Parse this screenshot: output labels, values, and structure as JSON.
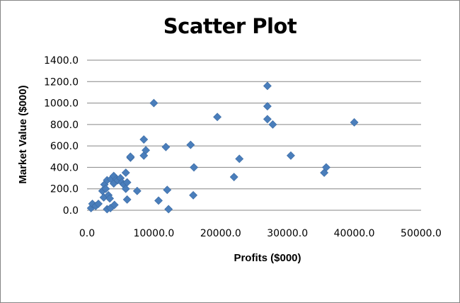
{
  "chart_data": {
    "type": "scatter",
    "title": "Scatter Plot",
    "xlabel": "Profits ($000)",
    "ylabel": "Market Value ($000)",
    "xlim": [
      0,
      50000
    ],
    "ylim": [
      0,
      1400
    ],
    "x_ticks": [
      "0.0",
      "10000.0",
      "20000.0",
      "30000.0",
      "40000.0",
      "50000.0"
    ],
    "y_ticks": [
      "0.0",
      "200.0",
      "400.0",
      "600.0",
      "800.0",
      "1000.0",
      "1200.0",
      "1400.0"
    ],
    "grid": "horizontal",
    "legend": "none",
    "marker_color": "#4a7ebb",
    "points": [
      [
        600,
        20
      ],
      [
        800,
        60
      ],
      [
        1300,
        40
      ],
      [
        1700,
        60
      ],
      [
        2300,
        180
      ],
      [
        2500,
        120
      ],
      [
        2600,
        240
      ],
      [
        2800,
        200
      ],
      [
        3000,
        280
      ],
      [
        3000,
        10
      ],
      [
        3200,
        140
      ],
      [
        3400,
        110
      ],
      [
        3500,
        20
      ],
      [
        3600,
        290
      ],
      [
        4000,
        320
      ],
      [
        4000,
        250
      ],
      [
        4100,
        50
      ],
      [
        4400,
        290
      ],
      [
        4600,
        280
      ],
      [
        5000,
        300
      ],
      [
        5200,
        260
      ],
      [
        5500,
        240
      ],
      [
        5800,
        350
      ],
      [
        5800,
        200
      ],
      [
        6000,
        260
      ],
      [
        6000,
        100
      ],
      [
        6500,
        490
      ],
      [
        6500,
        500
      ],
      [
        7500,
        180
      ],
      [
        8500,
        660
      ],
      [
        8500,
        510
      ],
      [
        8800,
        560
      ],
      [
        10000,
        1000
      ],
      [
        10700,
        90
      ],
      [
        11800,
        590
      ],
      [
        12000,
        190
      ],
      [
        12200,
        10
      ],
      [
        15500,
        610
      ],
      [
        15900,
        140
      ],
      [
        16000,
        400
      ],
      [
        19500,
        870
      ],
      [
        22000,
        310
      ],
      [
        22800,
        480
      ],
      [
        27000,
        1160
      ],
      [
        27000,
        970
      ],
      [
        27000,
        850
      ],
      [
        27800,
        800
      ],
      [
        30500,
        510
      ],
      [
        35500,
        350
      ],
      [
        35800,
        400
      ],
      [
        40000,
        820
      ]
    ]
  }
}
